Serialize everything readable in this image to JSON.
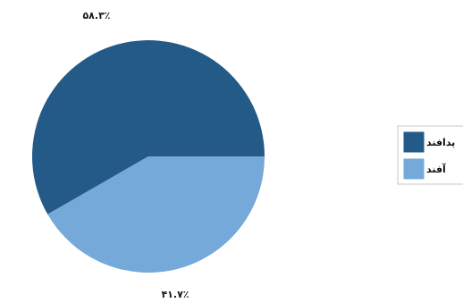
{
  "chart_data": {
    "type": "pie",
    "categories": [
      "پدافند",
      "آفند"
    ],
    "values": [
      58.3,
      41.7
    ],
    "data_labels": [
      "۵۸.۳٪",
      "۴۱.۷٪"
    ],
    "colors": [
      "#245a87",
      "#74a9d9"
    ],
    "legend_position": "right",
    "title": ""
  }
}
